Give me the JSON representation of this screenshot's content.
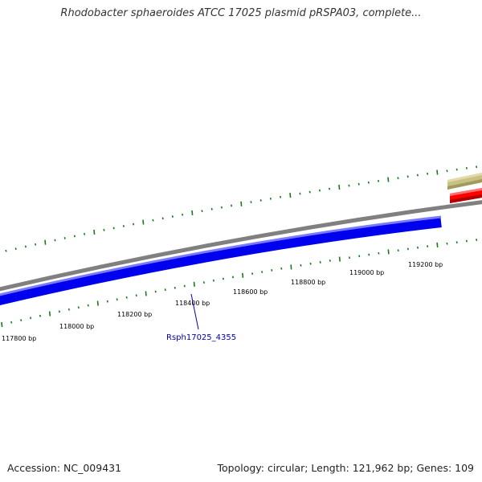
{
  "title": "Rhodobacter sphaeroides ATCC 17025 plasmid pRSPA03, complete...",
  "footer": {
    "accession": "Accession: NC_009431",
    "summary": "Topology: circular; Length: 121,962 bp; Genes: 109"
  },
  "map": {
    "scale_labels": [
      "117800 bp",
      "118000 bp",
      "118200 bp",
      "118400 bp",
      "118600 bp",
      "118800 bp",
      "119000 bp",
      "119200 bp"
    ],
    "gene_label": "Rsph17025_4355",
    "colors": {
      "backbone": "#808080",
      "gene_forward": "#0000ee",
      "gene_red": "#ff0000",
      "gene_khaki": "#c8c084",
      "tick": "#1a7a1a",
      "gene_label": "#0000aa"
    }
  }
}
